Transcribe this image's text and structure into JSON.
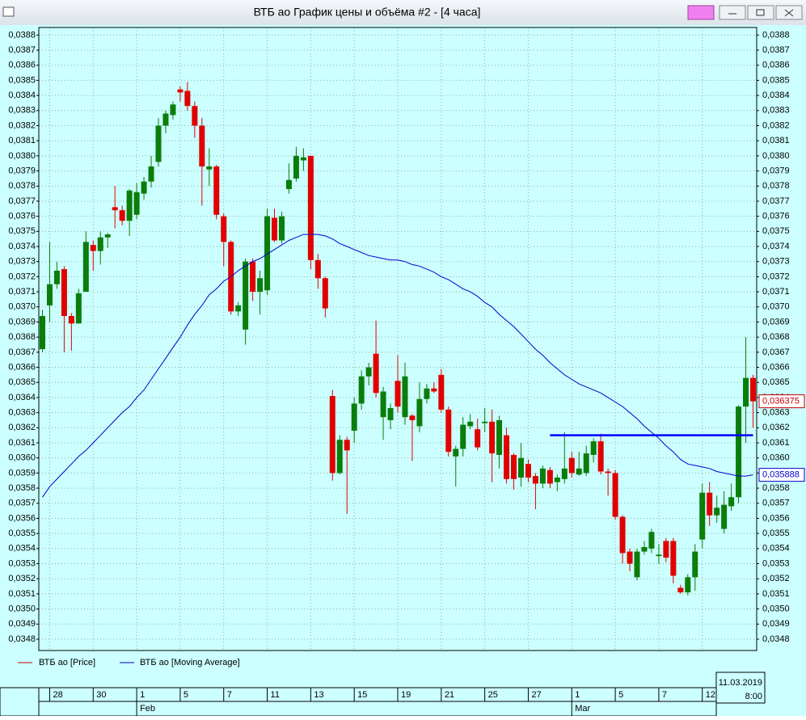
{
  "chart_data": {
    "type": "candlestick",
    "title": "ВТБ ао График цены и объёма #2 - [4 часа]",
    "categories": [
      null,
      "28",
      null,
      null,
      null,
      null,
      null,
      "30",
      null,
      null,
      null,
      null,
      null,
      "1",
      null,
      null,
      null,
      null,
      null,
      "5",
      null,
      null,
      null,
      null,
      null,
      "7",
      null,
      null,
      null,
      null,
      null,
      "11",
      null,
      null,
      null,
      null,
      null,
      "13",
      null,
      null,
      null,
      null,
      null,
      "15",
      null,
      null,
      null,
      null,
      null,
      "19",
      null,
      null,
      null,
      null,
      null,
      "21",
      null,
      null,
      null,
      null,
      null,
      "25",
      null,
      null,
      null,
      null,
      null,
      "27",
      null,
      null,
      null,
      null,
      null,
      "1",
      null,
      null,
      null,
      null,
      null,
      "5",
      null,
      null,
      null,
      null,
      null,
      "7",
      null,
      null,
      null,
      null,
      null,
      "12",
      null,
      null,
      null,
      null,
      null,
      null,
      null
    ],
    "month_labels": [
      null,
      null,
      null,
      null,
      null,
      null,
      null,
      null,
      null,
      null,
      null,
      null,
      null,
      "Feb",
      null,
      null,
      null,
      null,
      null,
      null,
      null,
      null,
      null,
      null,
      null,
      null,
      null,
      null,
      null,
      null,
      null,
      null,
      null,
      null,
      null,
      null,
      null,
      null,
      null,
      null,
      null,
      null,
      null,
      null,
      null,
      null,
      null,
      null,
      null,
      null,
      null,
      null,
      null,
      null,
      null,
      null,
      null,
      null,
      null,
      null,
      null,
      null,
      null,
      null,
      null,
      null,
      null,
      null,
      null,
      null,
      null,
      null,
      null,
      "Mar",
      null,
      null,
      null,
      null,
      null,
      null,
      null,
      null,
      null,
      null,
      null,
      null,
      null,
      null,
      null,
      null,
      null,
      null,
      null,
      null,
      null,
      null,
      null,
      null,
      null
    ],
    "price": {
      "name": "ВТБ ао [Price]",
      "color": "#c00000",
      "up_color": "#0a7d0a",
      "down_color": "#e00000",
      "open": [
        0.03672,
        0.03701,
        0.03715,
        0.03725,
        0.03694,
        0.03689,
        0.0371,
        0.03741,
        0.03737,
        0.03746,
        0.03766,
        0.03764,
        0.03757,
        0.03761,
        0.03775,
        0.03783,
        0.03796,
        0.0382,
        0.03827,
        0.03844,
        0.03843,
        0.03833,
        0.0382,
        0.03791,
        0.03793,
        0.0376,
        0.03743,
        0.03697,
        0.03685,
        0.0373,
        0.0371,
        0.03711,
        0.03759,
        0.03744,
        0.03778,
        0.03785,
        0.03797,
        0.038,
        0.03731,
        0.03719,
        0.03641,
        0.0359,
        0.03612,
        0.03618,
        0.03636,
        0.03654,
        0.03669,
        0.03627,
        0.03625,
        0.03651,
        0.03627,
        0.03628,
        0.03621,
        0.03639,
        0.03646,
        0.03655,
        0.03632,
        0.03601,
        0.03606,
        0.03621,
        0.03619,
        0.03623,
        0.03624,
        0.03602,
        0.03615,
        0.03602,
        0.03587,
        0.03596,
        0.03588,
        0.03583,
        0.03592,
        0.03584,
        0.03586,
        0.036,
        0.03589,
        0.0359,
        0.03602,
        0.03611,
        0.03591,
        0.0359,
        0.03561,
        0.03538,
        0.03521,
        0.03538,
        0.0354,
        0.03535,
        0.03545,
        0.03545,
        0.03514,
        0.03511,
        0.03521,
        0.03546,
        0.03577,
        0.03562,
        0.03553,
        0.03568,
        0.03574,
        0.03634,
        0.03653
      ],
      "high": [
        0.03698,
        0.03743,
        0.0373,
        0.03727,
        0.03696,
        0.03712,
        0.0375,
        0.03744,
        0.0375,
        0.03749,
        0.0378,
        0.03767,
        0.03778,
        0.03782,
        0.03786,
        0.038,
        0.03825,
        0.0383,
        0.03836,
        0.03846,
        0.03849,
        0.03836,
        0.03825,
        0.03805,
        0.03794,
        0.03762,
        0.03744,
        0.03703,
        0.03732,
        0.03732,
        0.03724,
        0.03765,
        0.03765,
        0.03763,
        0.03795,
        0.03806,
        0.03805,
        0.038,
        0.03735,
        0.0372,
        0.03645,
        0.03615,
        0.03614,
        0.0364,
        0.03658,
        0.03663,
        0.03691,
        0.03647,
        0.03636,
        0.03668,
        0.03663,
        0.03629,
        0.0365,
        0.03649,
        0.0365,
        0.03659,
        0.03634,
        0.03608,
        0.03627,
        0.03629,
        0.03626,
        0.03633,
        0.03632,
        0.03628,
        0.0362,
        0.03603,
        0.0361,
        0.03599,
        0.0359,
        0.03595,
        0.03594,
        0.03589,
        0.03617,
        0.03604,
        0.03604,
        0.03608,
        0.03613,
        0.03616,
        0.03593,
        0.03592,
        0.03562,
        0.0354,
        0.0354,
        0.03545,
        0.03553,
        0.03543,
        0.03547,
        0.03547,
        0.03516,
        0.03523,
        0.03543,
        0.03583,
        0.03584,
        0.03575,
        0.03578,
        0.03583,
        0.03635,
        0.0368,
        0.03655
      ],
      "low": [
        0.0367,
        0.0369,
        0.03712,
        0.0367,
        0.03671,
        0.03689,
        0.0371,
        0.03724,
        0.03728,
        0.03739,
        0.03752,
        0.03754,
        0.03747,
        0.03758,
        0.03771,
        0.03779,
        0.03793,
        0.03815,
        0.03824,
        0.03836,
        0.0383,
        0.03812,
        0.03767,
        0.0378,
        0.03758,
        0.03727,
        0.03695,
        0.03694,
        0.03675,
        0.03704,
        0.03695,
        0.03708,
        0.03743,
        0.03742,
        0.03775,
        0.03783,
        0.0379,
        0.03725,
        0.03712,
        0.03693,
        0.03585,
        0.03589,
        0.03563,
        0.0361,
        0.03632,
        0.03648,
        0.0364,
        0.03612,
        0.03619,
        0.0363,
        0.03622,
        0.03598,
        0.03617,
        0.03636,
        0.03643,
        0.0363,
        0.03601,
        0.03581,
        0.03601,
        0.03619,
        0.03605,
        0.03617,
        0.03584,
        0.03593,
        0.03583,
        0.03579,
        0.03581,
        0.03584,
        0.03566,
        0.0358,
        0.0358,
        0.03578,
        0.03583,
        0.03587,
        0.03588,
        0.03588,
        0.03597,
        0.03589,
        0.03575,
        0.03559,
        0.0353,
        0.03525,
        0.03519,
        0.03536,
        0.03537,
        0.0353,
        0.03531,
        0.03517,
        0.0351,
        0.03509,
        0.03512,
        0.0354,
        0.03555,
        0.03557,
        0.0355,
        0.03565,
        0.0357,
        0.0361,
        0.0362
      ],
      "close": [
        0.03694,
        0.03715,
        0.03724,
        0.03694,
        0.03689,
        0.03709,
        0.03743,
        0.03737,
        0.03746,
        0.03748,
        0.03764,
        0.03757,
        0.03777,
        0.03776,
        0.03783,
        0.03793,
        0.0382,
        0.03828,
        0.03834,
        0.03842,
        0.03833,
        0.0382,
        0.03793,
        0.03793,
        0.03761,
        0.03743,
        0.03697,
        0.03701,
        0.0373,
        0.0371,
        0.03719,
        0.0376,
        0.03744,
        0.0376,
        0.03784,
        0.038,
        0.03799,
        0.03731,
        0.03719,
        0.03699,
        0.0359,
        0.03612,
        0.03605,
        0.03636,
        0.03654,
        0.0366,
        0.03643,
        0.03644,
        0.03633,
        0.03634,
        0.03654,
        0.03625,
        0.03639,
        0.03646,
        0.03644,
        0.03632,
        0.03604,
        0.03606,
        0.03622,
        0.03624,
        0.03607,
        0.03624,
        0.03603,
        0.03625,
        0.03586,
        0.03586,
        0.036,
        0.03587,
        0.03583,
        0.03593,
        0.03583,
        0.03587,
        0.03593,
        0.0359,
        0.03593,
        0.03603,
        0.03611,
        0.03591,
        0.0359,
        0.03561,
        0.03537,
        0.0353,
        0.03538,
        0.03541,
        0.03551,
        0.03536,
        0.03534,
        0.03522,
        0.03511,
        0.03521,
        0.03538,
        0.03577,
        0.03562,
        0.03567,
        0.03569,
        0.03574,
        0.03634,
        0.03653,
        0.036375
      ]
    },
    "moving_average": {
      "name": "ВТБ ао [Moving Average]",
      "color": "#0000cc",
      "values": [
        0.03574,
        0.03581,
        0.03586,
        0.03591,
        0.03596,
        0.03601,
        0.03605,
        0.0361,
        0.03615,
        0.0362,
        0.03625,
        0.0363,
        0.03634,
        0.0364,
        0.03645,
        0.03652,
        0.03659,
        0.03666,
        0.03673,
        0.0368,
        0.03688,
        0.03695,
        0.03701,
        0.03708,
        0.03712,
        0.03717,
        0.0372,
        0.03724,
        0.03727,
        0.0373,
        0.03732,
        0.03735,
        0.03738,
        0.03741,
        0.03744,
        0.03746,
        0.03748,
        0.03748,
        0.03748,
        0.03747,
        0.03745,
        0.03742,
        0.0374,
        0.03738,
        0.03736,
        0.03734,
        0.03733,
        0.03732,
        0.03731,
        0.03731,
        0.0373,
        0.03728,
        0.03727,
        0.03725,
        0.03723,
        0.0372,
        0.03718,
        0.03715,
        0.03712,
        0.0371,
        0.03707,
        0.03703,
        0.037,
        0.03695,
        0.03691,
        0.03687,
        0.03682,
        0.03677,
        0.03672,
        0.03668,
        0.03663,
        0.03659,
        0.03655,
        0.03652,
        0.03649,
        0.03647,
        0.03645,
        0.03643,
        0.0364,
        0.03637,
        0.03634,
        0.0363,
        0.03626,
        0.03621,
        0.03617,
        0.03613,
        0.03608,
        0.03604,
        0.03599,
        0.03596,
        0.03595,
        0.03594,
        0.03593,
        0.03591,
        0.0359,
        0.03589,
        0.03588,
        0.03588,
        0.035888
      ]
    },
    "level_line": {
      "value": 0.03615,
      "color": "#0000ff"
    },
    "last_price": {
      "value": 0.036375,
      "label": "0,036375"
    },
    "last_ma": {
      "value": 0.035888,
      "label": "0,035888"
    },
    "date_box": {
      "date": "11.03.2019",
      "time": "8:00"
    },
    "ylim": [
      0.034725,
      0.03885
    ],
    "yticks": [
      {
        "value": 0.0388,
        "label": "0,0388"
      },
      {
        "value": 0.0387,
        "label": "0,0387"
      },
      {
        "value": 0.0386,
        "label": "0,0386"
      },
      {
        "value": 0.0385,
        "label": "0,0385"
      },
      {
        "value": 0.0384,
        "label": "0,0384"
      },
      {
        "value": 0.0383,
        "label": "0,0383"
      },
      {
        "value": 0.0382,
        "label": "0,0382"
      },
      {
        "value": 0.0381,
        "label": "0,0381"
      },
      {
        "value": 0.038,
        "label": "0,0380"
      },
      {
        "value": 0.0379,
        "label": "0,0379"
      },
      {
        "value": 0.0378,
        "label": "0,0378"
      },
      {
        "value": 0.0377,
        "label": "0,0377"
      },
      {
        "value": 0.0376,
        "label": "0,0376"
      },
      {
        "value": 0.0375,
        "label": "0,0375"
      },
      {
        "value": 0.0374,
        "label": "0,0374"
      },
      {
        "value": 0.0373,
        "label": "0,0373"
      },
      {
        "value": 0.0372,
        "label": "0,0372"
      },
      {
        "value": 0.0371,
        "label": "0,0371"
      },
      {
        "value": 0.037,
        "label": "0,0370"
      },
      {
        "value": 0.0369,
        "label": "0,0369"
      },
      {
        "value": 0.0368,
        "label": "0,0368"
      },
      {
        "value": 0.0367,
        "label": "0,0367"
      },
      {
        "value": 0.0366,
        "label": "0,0366"
      },
      {
        "value": 0.0365,
        "label": "0,0365"
      },
      {
        "value": 0.0364,
        "label": "0,0364"
      },
      {
        "value": 0.0363,
        "label": "0,0363"
      },
      {
        "value": 0.0362,
        "label": "0,0362"
      },
      {
        "value": 0.0361,
        "label": "0,0361"
      },
      {
        "value": 0.036,
        "label": "0,0360"
      },
      {
        "value": 0.0359,
        "label": "0,0359"
      },
      {
        "value": 0.0358,
        "label": "0,0358"
      },
      {
        "value": 0.0357,
        "label": "0,0357"
      },
      {
        "value": 0.0356,
        "label": "0,0356"
      },
      {
        "value": 0.0355,
        "label": "0,0355"
      },
      {
        "value": 0.0354,
        "label": "0,0354"
      },
      {
        "value": 0.0353,
        "label": "0,0353"
      },
      {
        "value": 0.0352,
        "label": "0,0352"
      },
      {
        "value": 0.0351,
        "label": "0,0351"
      },
      {
        "value": 0.035,
        "label": "0,0350"
      },
      {
        "value": 0.0349,
        "label": "0,0349"
      },
      {
        "value": 0.0348,
        "label": "0,0348"
      }
    ],
    "grid": true
  }
}
